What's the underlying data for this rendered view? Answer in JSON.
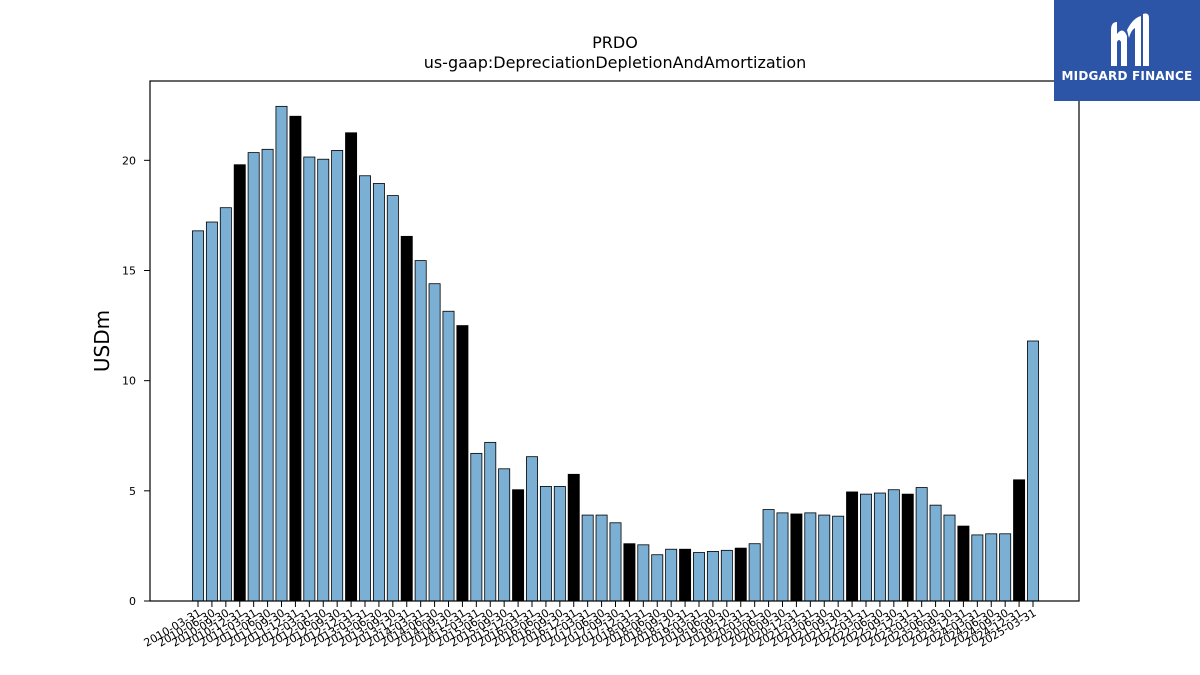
{
  "chart_data": {
    "type": "bar",
    "title": "PRDO",
    "subtitle": "us-gaap:DepreciationDepletionAndAmortization",
    "xlabel": "",
    "ylabel": "USDm",
    "ylim": [
      0,
      23.6
    ],
    "yticks": [
      0,
      5,
      10,
      15,
      20
    ],
    "colors": {
      "quarter": "#7bafd4",
      "annual": "#000000",
      "edge": "#000000"
    },
    "categories": [
      "2010-03-31",
      "2010-06-30",
      "2010-09-30",
      "2010-12-31",
      "2011-03-31",
      "2011-06-30",
      "2011-09-30",
      "2011-12-31",
      "2012-03-31",
      "2012-06-30",
      "2012-09-30",
      "2012-12-31",
      "2013-03-31",
      "2013-06-30",
      "2013-09-30",
      "2013-12-31",
      "2014-03-31",
      "2014-06-30",
      "2014-09-30",
      "2014-12-31",
      "2015-03-31",
      "2015-06-30",
      "2015-09-30",
      "2015-12-31",
      "2016-03-31",
      "2016-06-30",
      "2016-09-30",
      "2016-12-31",
      "2017-03-31",
      "2017-06-30",
      "2017-09-30",
      "2017-12-31",
      "2018-03-31",
      "2018-06-30",
      "2018-09-30",
      "2018-12-31",
      "2019-03-31",
      "2019-06-30",
      "2019-09-30",
      "2019-12-31",
      "2020-03-31",
      "2020-06-30",
      "2020-09-30",
      "2020-12-31",
      "2021-03-31",
      "2021-06-30",
      "2021-09-30",
      "2021-12-31",
      "2022-03-31",
      "2022-06-30",
      "2022-09-30",
      "2022-12-31",
      "2023-03-31",
      "2023-06-30",
      "2023-09-30",
      "2023-12-31",
      "2024-03-31",
      "2024-06-30",
      "2024-09-30",
      "2024-12-31",
      "2025-03-31"
    ],
    "values": [
      16.8,
      17.2,
      17.85,
      19.8,
      20.35,
      20.5,
      22.45,
      22.0,
      20.15,
      20.05,
      20.45,
      21.25,
      19.3,
      18.95,
      18.4,
      16.55,
      15.45,
      14.4,
      13.15,
      12.5,
      6.7,
      7.2,
      6.0,
      5.05,
      6.55,
      5.2,
      5.2,
      5.75,
      3.9,
      3.9,
      3.55,
      2.6,
      2.55,
      2.1,
      2.35,
      2.35,
      2.2,
      2.25,
      2.3,
      2.4,
      2.6,
      4.15,
      4.0,
      3.95,
      4.0,
      3.9,
      3.85,
      4.95,
      4.85,
      4.9,
      5.05,
      4.85,
      5.15,
      4.35,
      3.9,
      3.4,
      3.0,
      3.05,
      3.05,
      5.5,
      11.8
    ],
    "annual_flags": [
      0,
      0,
      0,
      1,
      0,
      0,
      0,
      1,
      0,
      0,
      0,
      1,
      0,
      0,
      0,
      1,
      0,
      0,
      0,
      1,
      0,
      0,
      0,
      1,
      0,
      0,
      0,
      1,
      0,
      0,
      0,
      1,
      0,
      0,
      0,
      1,
      0,
      0,
      0,
      1,
      0,
      0,
      0,
      1,
      0,
      0,
      0,
      1,
      0,
      0,
      0,
      1,
      0,
      0,
      0,
      1,
      0,
      0,
      0,
      1,
      0
    ],
    "grid": false
  },
  "logo": {
    "text": "MIDGARD FINANCE",
    "icon": "midgard-logo-icon"
  }
}
